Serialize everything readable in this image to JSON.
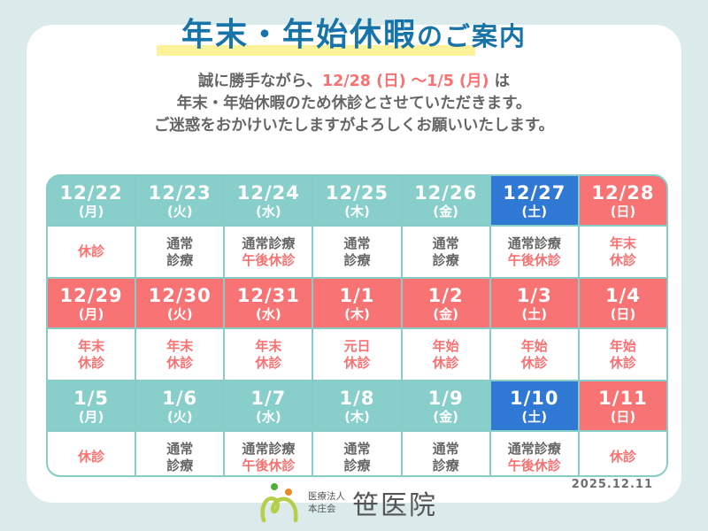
{
  "title": {
    "main": "年末・年始休暇",
    "suffix": "のご案内"
  },
  "intro": {
    "line1_pre": "誠に勝手ながら、",
    "line1_highlight": "12/28 (日) ～1/5 (月)",
    "line1_post": " は",
    "line2": "年末・年始休暇のため休診とさせていただきます。",
    "line3": "ご迷惑をおかけいたしますがよろしくお願いいたします。"
  },
  "colors": {
    "background": "#dbeaea",
    "teal": "#88cfcb",
    "blue": "#2f78d4",
    "red": "#f87474",
    "title_blue": "#1873a8",
    "highlight_yellow": "#fbf29a",
    "text_gray": "#666666"
  },
  "weeks": [
    [
      {
        "date": "12/22",
        "weekday": "(月)",
        "type": "teal",
        "lines": [
          {
            "text": "休診",
            "color": "red"
          }
        ]
      },
      {
        "date": "12/23",
        "weekday": "(火)",
        "type": "teal",
        "lines": [
          {
            "text": "通常",
            "color": "gray"
          },
          {
            "text": "診療",
            "color": "gray"
          }
        ]
      },
      {
        "date": "12/24",
        "weekday": "(水)",
        "type": "teal",
        "lines": [
          {
            "text": "通常診療",
            "color": "gray"
          },
          {
            "text": "午後休診",
            "color": "red"
          }
        ]
      },
      {
        "date": "12/25",
        "weekday": "(木)",
        "type": "teal",
        "lines": [
          {
            "text": "通常",
            "color": "gray"
          },
          {
            "text": "診療",
            "color": "gray"
          }
        ]
      },
      {
        "date": "12/26",
        "weekday": "(金)",
        "type": "teal",
        "lines": [
          {
            "text": "通常",
            "color": "gray"
          },
          {
            "text": "診療",
            "color": "gray"
          }
        ]
      },
      {
        "date": "12/27",
        "weekday": "(土)",
        "type": "blue",
        "lines": [
          {
            "text": "通常診療",
            "color": "gray"
          },
          {
            "text": "午後休診",
            "color": "red"
          }
        ]
      },
      {
        "date": "12/28",
        "weekday": "(日)",
        "type": "red",
        "lines": [
          {
            "text": "年末",
            "color": "red"
          },
          {
            "text": "休診",
            "color": "red"
          }
        ]
      }
    ],
    [
      {
        "date": "12/29",
        "weekday": "(月)",
        "type": "red",
        "lines": [
          {
            "text": "年末",
            "color": "red"
          },
          {
            "text": "休診",
            "color": "red"
          }
        ]
      },
      {
        "date": "12/30",
        "weekday": "(火)",
        "type": "red",
        "lines": [
          {
            "text": "年末",
            "color": "red"
          },
          {
            "text": "休診",
            "color": "red"
          }
        ]
      },
      {
        "date": "12/31",
        "weekday": "(水)",
        "type": "red",
        "lines": [
          {
            "text": "年末",
            "color": "red"
          },
          {
            "text": "休診",
            "color": "red"
          }
        ]
      },
      {
        "date": "1/1",
        "weekday": "(木)",
        "type": "red",
        "lines": [
          {
            "text": "元日",
            "color": "red"
          },
          {
            "text": "休診",
            "color": "red"
          }
        ]
      },
      {
        "date": "1/2",
        "weekday": "(金)",
        "type": "red",
        "lines": [
          {
            "text": "年始",
            "color": "red"
          },
          {
            "text": "休診",
            "color": "red"
          }
        ]
      },
      {
        "date": "1/3",
        "weekday": "(土)",
        "type": "red",
        "lines": [
          {
            "text": "年始",
            "color": "red"
          },
          {
            "text": "休診",
            "color": "red"
          }
        ]
      },
      {
        "date": "1/4",
        "weekday": "(日)",
        "type": "red",
        "lines": [
          {
            "text": "年始",
            "color": "red"
          },
          {
            "text": "休診",
            "color": "red"
          }
        ]
      }
    ],
    [
      {
        "date": "1/5",
        "weekday": "(月)",
        "type": "teal",
        "lines": [
          {
            "text": "休診",
            "color": "red"
          }
        ]
      },
      {
        "date": "1/6",
        "weekday": "(火)",
        "type": "teal",
        "lines": [
          {
            "text": "通常",
            "color": "gray"
          },
          {
            "text": "診療",
            "color": "gray"
          }
        ]
      },
      {
        "date": "1/7",
        "weekday": "(水)",
        "type": "teal",
        "lines": [
          {
            "text": "通常診療",
            "color": "gray"
          },
          {
            "text": "午後休診",
            "color": "red"
          }
        ]
      },
      {
        "date": "1/8",
        "weekday": "(木)",
        "type": "teal",
        "lines": [
          {
            "text": "通常",
            "color": "gray"
          },
          {
            "text": "診療",
            "color": "gray"
          }
        ]
      },
      {
        "date": "1/9",
        "weekday": "(金)",
        "type": "teal",
        "lines": [
          {
            "text": "通常",
            "color": "gray"
          },
          {
            "text": "診療",
            "color": "gray"
          }
        ]
      },
      {
        "date": "1/10",
        "weekday": "(土)",
        "type": "blue",
        "lines": [
          {
            "text": "通常診療",
            "color": "gray"
          },
          {
            "text": "午後休診",
            "color": "red"
          }
        ]
      },
      {
        "date": "1/11",
        "weekday": "(日)",
        "type": "red",
        "lines": [
          {
            "text": "休診",
            "color": "red"
          }
        ]
      }
    ]
  ],
  "footer": {
    "date": "2025.12.11",
    "org_line1": "医療法人",
    "org_line2": "本庄会",
    "clinic_name": "笹医院",
    "logo_icon": "clinic-logo-icon"
  }
}
